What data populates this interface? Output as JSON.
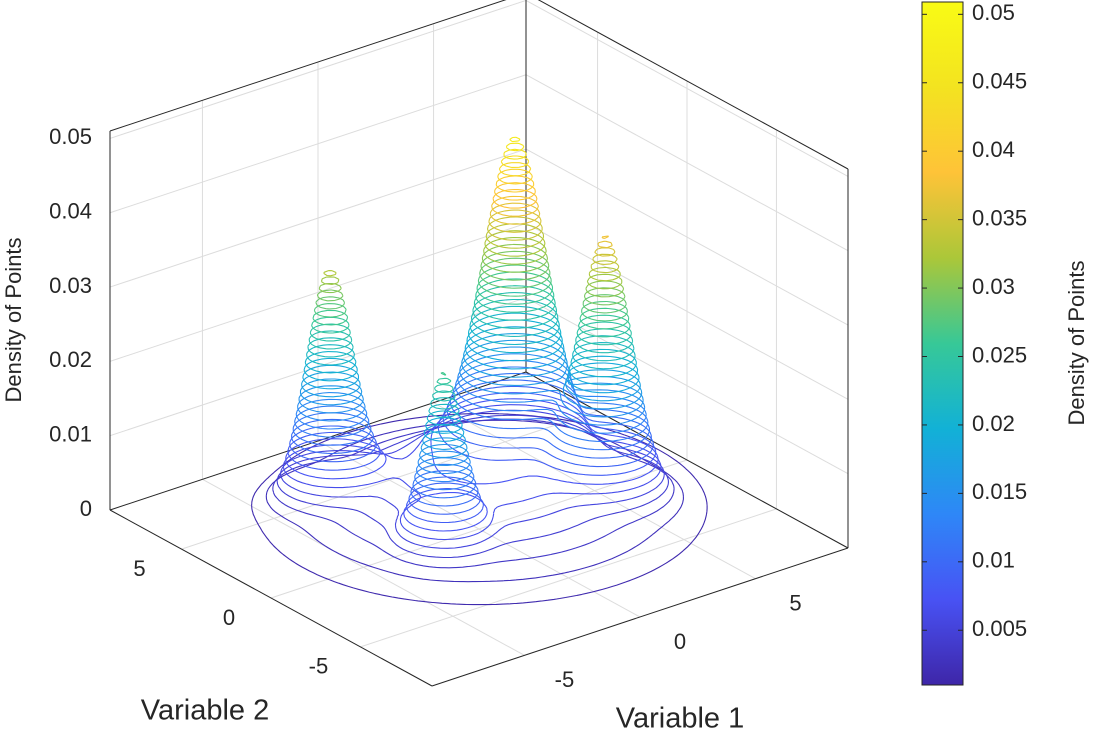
{
  "chart_data": {
    "type": "contour3",
    "xlabel": "Variable 1",
    "ylabel": "Variable 2",
    "zlabel": "Density of Points",
    "colorbar_label": "Density of Points",
    "xlim": [
      -9,
      9
    ],
    "ylim": [
      -9,
      9
    ],
    "zlim": [
      0,
      0.051
    ],
    "xticks": [
      -5,
      0,
      5
    ],
    "yticks": [
      -5,
      0,
      5
    ],
    "zticks": [
      0,
      0.01,
      0.02,
      0.03,
      0.04,
      0.05
    ],
    "clim": [
      0.001,
      0.0509
    ],
    "cticks": [
      0.005,
      0.01,
      0.015,
      0.02,
      0.025,
      0.03,
      0.035,
      0.04,
      0.045,
      0.05
    ],
    "colormap": "parula",
    "levels": 50,
    "grid": true,
    "components": [
      {
        "x": 3.2,
        "y": 2.1,
        "height": 0.041,
        "spread": 1.1
      },
      {
        "x": 4.1,
        "y": -1.8,
        "height": 0.033,
        "spread": 0.9
      },
      {
        "x": -3.3,
        "y": 4.1,
        "height": 0.03,
        "spread": 0.8
      },
      {
        "x": -3,
        "y": -1.9,
        "height": 0.022,
        "spread": 0.7
      },
      {
        "x": 0.5,
        "y": 0.5,
        "height": 0.008,
        "spread": 4.2
      }
    ]
  }
}
